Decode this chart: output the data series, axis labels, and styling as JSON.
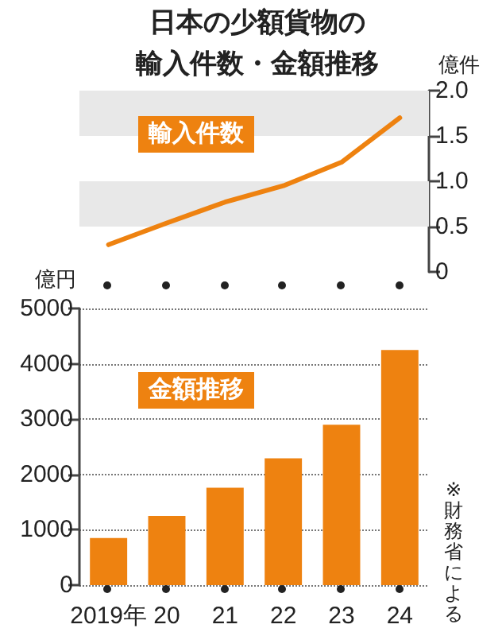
{
  "chart_data": [
    {
      "type": "line",
      "title": "日本の少額貨物の",
      "subtitle": "輸入件数・金額推移",
      "ylabel": "億件",
      "categories": [
        null,
        null,
        null,
        null,
        null,
        null
      ],
      "series": [
        {
          "name": "輸入件数",
          "color": "#ee8210",
          "values": [
            0.3,
            0.54,
            0.77,
            0.95,
            1.21,
            1.7
          ]
        }
      ],
      "ylim": [
        0,
        2
      ],
      "yticks": [
        0,
        {
          "value": 0.5,
          "label": "0.5"
        },
        {
          "value": 1,
          "label": "1.0"
        },
        {
          "value": 1.5,
          "label": "1.5"
        },
        {
          "value": 2,
          "label": "2.0"
        }
      ],
      "bands": [
        {
          "axis": "y",
          "from": 0.5,
          "to": 1,
          "color": "#e8e8e8"
        },
        {
          "axis": "y",
          "from": 1.5,
          "to": 2,
          "color": "#e8e8e8"
        }
      ],
      "grid": false,
      "legend": false,
      "marker": "none",
      "line_style": "solid",
      "tick_labels": "y"
    },
    {
      "type": "bar",
      "ylabel": "億円",
      "categories": [
        "2019年",
        "20",
        "21",
        "22",
        "23",
        "24"
      ],
      "series": [
        {
          "name": "金額推移",
          "color": "#ee8210",
          "values": [
            850,
            1250,
            1760,
            2290,
            2900,
            4250
          ]
        }
      ],
      "ylim": [
        0,
        5000
      ],
      "yticks": [
        0,
        1000,
        2000,
        3000,
        4000,
        5000
      ],
      "annotations": [
        "※財務省による"
      ],
      "grid": "y",
      "legend": false
    }
  ]
}
